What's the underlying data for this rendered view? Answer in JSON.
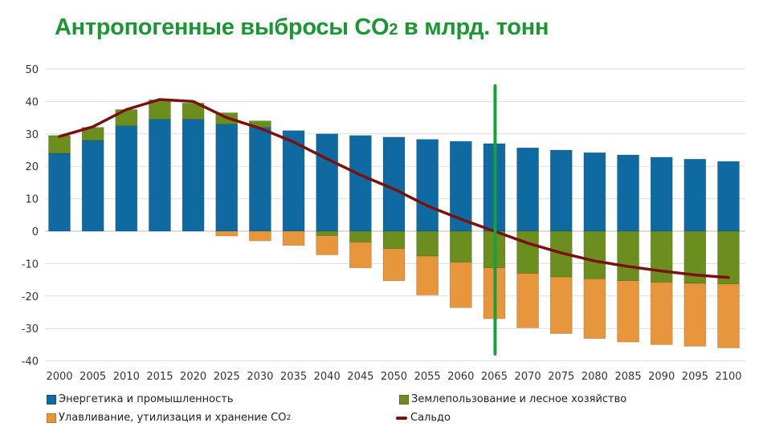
{
  "title": {
    "main": "Антропогенные выбросы CO",
    "sub": "2",
    "end": " в млрд. тонн"
  },
  "chart_data": {
    "type": "bar",
    "stacked": true,
    "categories": [
      "2000",
      "2005",
      "2010",
      "2015",
      "2020",
      "2025",
      "2030",
      "2035",
      "2040",
      "2045",
      "2050",
      "2055",
      "2060",
      "2065",
      "2070",
      "2075",
      "2080",
      "2085",
      "2090",
      "2095",
      "2100"
    ],
    "ylim": [
      -40,
      50
    ],
    "yticks": [
      50,
      40,
      30,
      20,
      10,
      0,
      -10,
      -20,
      -30,
      -40
    ],
    "grid": true,
    "legend_position": "bottom",
    "series": [
      {
        "name": "Энергетика и промышленность",
        "type": "bar",
        "color": "#0e6aa0",
        "values": [
          24,
          28,
          32.5,
          34.5,
          34.5,
          33,
          32,
          31,
          30,
          29.5,
          29,
          28.3,
          27.7,
          27,
          25.7,
          25,
          24.2,
          23.5,
          22.8,
          22.2,
          21.5
        ]
      },
      {
        "name": "Землепользование и лесное хозяйство",
        "type": "bar",
        "color": "#6b8e1e",
        "values": [
          5.5,
          4,
          5,
          6,
          5,
          3.5,
          2,
          0,
          -1.4,
          -3.4,
          -5.4,
          -7.7,
          -9.6,
          -11.3,
          -13,
          -14.1,
          -14.7,
          -15.3,
          -15.8,
          -16.1,
          -16.3
        ]
      },
      {
        "name": "Улавливание, утилизация и хранение CO",
        "name_sub": "2",
        "type": "bar",
        "color": "#e8963c",
        "values": [
          0,
          0,
          0,
          0,
          0,
          -1.5,
          -3,
          -4.4,
          -5.9,
          -7.9,
          -9.9,
          -12,
          -14,
          -15.7,
          -16.8,
          -17.5,
          -18.4,
          -18.9,
          -19.2,
          -19.4,
          -19.7
        ]
      },
      {
        "name": "Сальдо",
        "type": "line",
        "color": "#7a1010",
        "values": [
          29.2,
          32.2,
          37.5,
          40.6,
          40,
          35,
          31.7,
          27.5,
          22.3,
          17.3,
          13,
          7.8,
          3.7,
          0,
          -3.7,
          -6.7,
          -9.2,
          -10.9,
          -12.3,
          -13.5,
          -14.3
        ]
      }
    ],
    "annotations": [
      {
        "type": "vertical-line",
        "x": "2065",
        "color": "#1aa03a"
      }
    ]
  }
}
